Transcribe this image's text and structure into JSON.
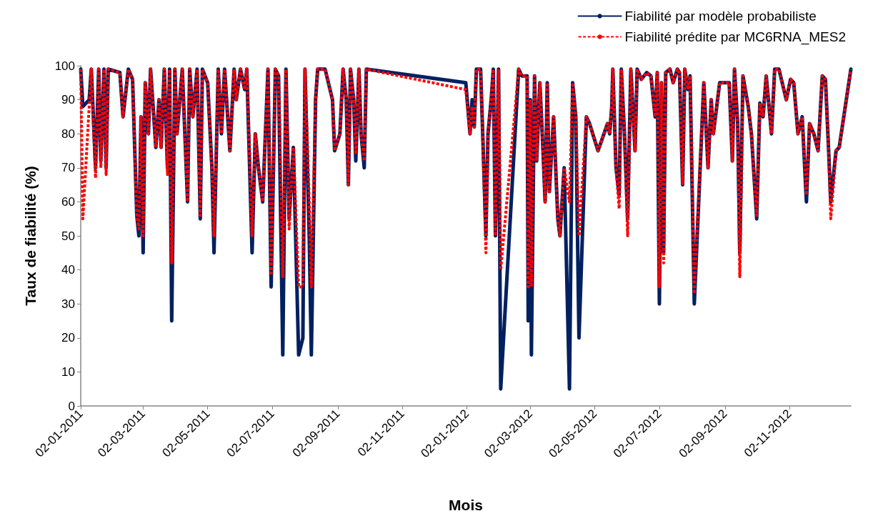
{
  "chart_data": {
    "type": "line",
    "xlabel": "Mois",
    "ylabel": "Taux de fiabilité (%)",
    "legend": "top right",
    "grid": false,
    "marker": "none",
    "x": [
      "2011-01-02",
      "2011-01-04",
      "2011-01-10",
      "2011-01-12",
      "2011-01-16",
      "2011-01-19",
      "2011-01-21",
      "2011-01-24",
      "2011-01-26",
      "2011-01-28",
      "2011-02-08",
      "2011-02-11",
      "2011-02-16",
      "2011-02-20",
      "2011-02-24",
      "2011-02-26",
      "2011-02-28",
      "2011-03-02",
      "2011-03-04",
      "2011-03-07",
      "2011-03-09",
      "2011-03-11",
      "2011-03-14",
      "2011-03-17",
      "2011-03-19",
      "2011-03-22",
      "2011-03-25",
      "2011-03-27",
      "2011-03-29",
      "2011-04-01",
      "2011-04-03",
      "2011-04-08",
      "2011-04-13",
      "2011-04-15",
      "2011-04-18",
      "2011-04-22",
      "2011-04-25",
      "2011-04-27",
      "2011-05-02",
      "2011-05-06",
      "2011-05-08",
      "2011-05-12",
      "2011-05-15",
      "2011-05-18",
      "2011-05-23",
      "2011-05-27",
      "2011-05-29",
      "2011-06-02",
      "2011-06-06",
      "2011-06-08",
      "2011-06-13",
      "2011-06-16",
      "2011-06-19",
      "2011-06-23",
      "2011-06-28",
      "2011-07-01",
      "2011-07-05",
      "2011-07-08",
      "2011-07-12",
      "2011-07-15",
      "2011-07-18",
      "2011-07-22",
      "2011-07-27",
      "2011-07-31",
      "2011-08-02",
      "2011-08-06",
      "2011-08-08",
      "2011-08-12",
      "2011-08-14",
      "2011-08-21",
      "2011-08-28",
      "2011-08-30",
      "2011-09-04",
      "2011-09-07",
      "2011-09-10",
      "2011-09-12",
      "2011-09-14",
      "2011-09-17",
      "2011-09-19",
      "2011-09-22",
      "2011-09-24",
      "2011-09-27",
      "2011-09-29",
      "2012-01-01",
      "2012-01-05",
      "2012-01-07",
      "2012-01-09",
      "2012-01-11",
      "2012-01-15",
      "2012-01-17",
      "2012-01-20",
      "2012-01-22",
      "2012-01-25",
      "2012-01-27",
      "2012-01-29",
      "2012-02-01",
      "2012-02-03",
      "2012-02-20",
      "2012-02-23",
      "2012-02-28",
      "2012-02-29",
      "2012-03-02",
      "2012-03-03",
      "2012-03-06",
      "2012-03-08",
      "2012-03-11",
      "2012-03-14",
      "2012-03-16",
      "2012-03-18",
      "2012-03-20",
      "2012-03-24",
      "2012-03-28",
      "2012-03-30",
      "2012-04-03",
      "2012-04-08",
      "2012-04-11",
      "2012-04-14",
      "2012-04-17",
      "2012-04-24",
      "2012-04-27",
      "2012-05-05",
      "2012-05-14",
      "2012-05-16",
      "2012-05-18",
      "2012-05-19",
      "2012-05-22",
      "2012-05-25",
      "2012-05-27",
      "2012-05-30",
      "2012-06-02",
      "2012-06-05",
      "2012-06-09",
      "2012-06-11",
      "2012-06-15",
      "2012-06-20",
      "2012-06-24",
      "2012-06-28",
      "2012-06-30",
      "2012-07-02",
      "2012-07-04",
      "2012-07-06",
      "2012-07-08",
      "2012-07-12",
      "2012-07-15",
      "2012-07-19",
      "2012-07-21",
      "2012-07-24",
      "2012-07-26",
      "2012-07-29",
      "2012-07-31",
      "2012-08-04",
      "2012-08-13",
      "2012-08-17",
      "2012-08-20",
      "2012-08-22",
      "2012-08-28",
      "2012-09-06",
      "2012-09-09",
      "2012-09-11",
      "2012-09-14",
      "2012-09-16",
      "2012-09-19",
      "2012-09-24",
      "2012-09-27",
      "2012-09-29",
      "2012-10-02",
      "2012-10-05",
      "2012-10-08",
      "2012-10-11",
      "2012-10-16",
      "2012-10-19",
      "2012-10-23",
      "2012-10-30",
      "2012-11-03",
      "2012-11-06",
      "2012-11-10",
      "2012-11-14",
      "2012-11-18",
      "2012-11-21",
      "2012-11-25",
      "2012-11-29",
      "2012-12-03",
      "2012-12-06",
      "2012-12-09",
      "2012-12-11",
      "2012-12-16",
      "2012-12-19",
      "2012-12-30"
    ],
    "series": [
      {
        "name": "Fiabilité par modèle probabiliste",
        "color": "#002060",
        "line_style": "solid",
        "values": [
          99,
          88,
          90,
          99,
          70,
          99,
          72,
          99,
          70,
          99,
          98,
          85,
          99,
          96,
          56,
          50,
          85,
          45,
          95,
          80,
          99,
          90,
          76,
          90,
          76,
          99,
          70,
          99,
          25,
          99,
          80,
          99,
          60,
          99,
          85,
          99,
          55,
          99,
          95,
          70,
          45,
          99,
          80,
          99,
          75,
          99,
          90,
          99,
          93,
          99,
          45,
          80,
          70,
          60,
          99,
          35,
          99,
          97,
          15,
          99,
          55,
          76,
          15,
          20,
          99,
          50,
          15,
          90,
          99,
          99,
          90,
          75,
          80,
          99,
          90,
          65,
          99,
          90,
          72,
          99,
          80,
          70,
          99,
          95,
          80,
          90,
          82,
          99,
          99,
          80,
          50,
          80,
          90,
          99,
          50,
          99,
          5,
          99,
          97,
          97,
          25,
          90,
          15,
          97,
          72,
          95,
          75,
          60,
          95,
          63,
          85,
          55,
          50,
          70,
          5,
          95,
          85,
          20,
          85,
          83,
          75,
          83,
          80,
          88,
          99,
          70,
          62,
          99,
          80,
          55,
          99,
          75,
          99,
          96,
          98,
          97,
          85,
          98,
          30,
          95,
          45,
          98,
          99,
          95,
          99,
          98,
          65,
          99,
          93,
          97,
          30,
          95,
          70,
          90,
          80,
          95,
          95,
          72,
          99,
          83,
          45,
          97,
          88,
          80,
          70,
          55,
          89,
          85,
          97,
          80,
          99,
          99,
          90,
          96,
          95,
          80,
          85,
          60,
          83,
          80,
          75,
          97,
          96,
          75,
          60,
          75,
          76,
          99
        ]
      },
      {
        "name": "Fiabilité prédite par MC6RNA_MES2",
        "color": "#ff0000",
        "line_style": "dashed",
        "values": [
          99,
          55,
          88,
          99,
          67,
          99,
          70,
          99,
          68,
          99,
          98,
          85,
          99,
          96,
          56,
          52,
          85,
          50,
          95,
          80,
          99,
          90,
          76,
          90,
          76,
          99,
          68,
          99,
          42,
          99,
          80,
          99,
          60,
          99,
          85,
          99,
          56,
          99,
          95,
          70,
          50,
          99,
          80,
          99,
          75,
          99,
          90,
          99,
          93,
          99,
          50,
          80,
          70,
          60,
          99,
          39,
          99,
          97,
          38,
          99,
          52,
          76,
          35,
          35,
          99,
          60,
          35,
          90,
          99,
          99,
          90,
          75,
          80,
          99,
          90,
          65,
          99,
          90,
          74,
          99,
          80,
          72,
          99,
          93,
          80,
          88,
          82,
          99,
          99,
          80,
          45,
          80,
          90,
          99,
          50,
          99,
          40,
          99,
          97,
          97,
          35,
          90,
          35,
          97,
          72,
          95,
          75,
          60,
          95,
          63,
          85,
          55,
          50,
          70,
          60,
          95,
          85,
          50,
          85,
          83,
          75,
          83,
          80,
          88,
          99,
          70,
          58,
          99,
          80,
          50,
          99,
          75,
          99,
          96,
          98,
          97,
          85,
          98,
          35,
          95,
          42,
          98,
          99,
          95,
          99,
          98,
          65,
          99,
          93,
          97,
          33,
          95,
          70,
          90,
          80,
          95,
          95,
          72,
          99,
          83,
          38,
          97,
          88,
          80,
          70,
          56,
          89,
          85,
          97,
          80,
          99,
          99,
          90,
          96,
          95,
          80,
          85,
          62,
          83,
          80,
          75,
          97,
          96,
          75,
          55,
          75,
          76,
          99
        ]
      }
    ],
    "xlim": [
      "2011-01-02",
      "2012-12-30"
    ],
    "xticks": [
      {
        "value": "2011-01-02",
        "label": "02-01-2011"
      },
      {
        "value": "2011-03-02",
        "label": "02-03-2011"
      },
      {
        "value": "2011-05-02",
        "label": "02-05-2011"
      },
      {
        "value": "2011-07-02",
        "label": "02-07-2011"
      },
      {
        "value": "2011-09-02",
        "label": "02-09-2011"
      },
      {
        "value": "2011-11-02",
        "label": "02-11-2011"
      },
      {
        "value": "2012-01-02",
        "label": "02-01-2012"
      },
      {
        "value": "2012-03-02",
        "label": "02-03-2012"
      },
      {
        "value": "2012-05-02",
        "label": "02-05-2012"
      },
      {
        "value": "2012-07-02",
        "label": "02-07-2012"
      },
      {
        "value": "2012-09-02",
        "label": "02-09-2012"
      },
      {
        "value": "2012-11-02",
        "label": "02-11-2012"
      }
    ],
    "ylim": [
      0,
      100
    ],
    "yticks": [
      0,
      10,
      20,
      30,
      40,
      50,
      60,
      70,
      80,
      90,
      100
    ]
  }
}
